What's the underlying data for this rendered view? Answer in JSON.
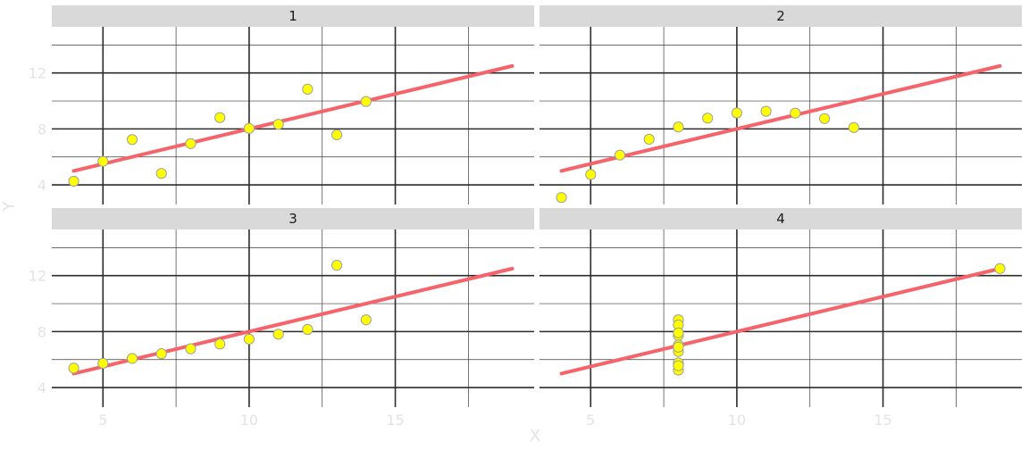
{
  "chart_data": {
    "type": "scatter",
    "xlabel": "X",
    "ylabel": "Y",
    "xlim": [
      3.25,
      19.75
    ],
    "ylim": [
      2.6,
      15.3
    ],
    "x_ticks": [
      5,
      10,
      15
    ],
    "y_ticks": [
      4,
      8,
      12
    ],
    "x_minor": [
      7.5,
      12.5,
      17.5
    ],
    "y_minor": [
      6,
      10,
      14
    ],
    "grid": true,
    "fit_line": {
      "x0": 4,
      "x1": 19,
      "intercept": 3,
      "slope": 0.5,
      "color": "#f4646a"
    },
    "point_color": "#ffff00",
    "panels": [
      {
        "label": "1",
        "x": [
          10,
          8,
          13,
          9,
          11,
          14,
          6,
          4,
          12,
          7,
          5
        ],
        "y": [
          8.04,
          6.95,
          7.58,
          8.81,
          8.33,
          9.96,
          7.24,
          4.26,
          10.84,
          4.82,
          5.68
        ]
      },
      {
        "label": "2",
        "x": [
          10,
          8,
          13,
          9,
          11,
          14,
          6,
          4,
          12,
          7,
          5
        ],
        "y": [
          9.14,
          8.14,
          8.74,
          8.77,
          9.26,
          8.1,
          6.13,
          3.1,
          9.13,
          7.26,
          4.74
        ]
      },
      {
        "label": "3",
        "x": [
          10,
          8,
          13,
          9,
          11,
          14,
          6,
          4,
          12,
          7,
          5
        ],
        "y": [
          7.46,
          6.77,
          12.74,
          7.11,
          7.81,
          8.84,
          6.08,
          5.39,
          8.15,
          6.42,
          5.73
        ]
      },
      {
        "label": "4",
        "x": [
          8,
          8,
          8,
          8,
          8,
          8,
          8,
          19,
          8,
          8,
          8
        ],
        "y": [
          6.58,
          5.76,
          7.71,
          8.84,
          8.47,
          7.04,
          5.25,
          12.5,
          5.56,
          7.91,
          6.89
        ]
      }
    ]
  }
}
